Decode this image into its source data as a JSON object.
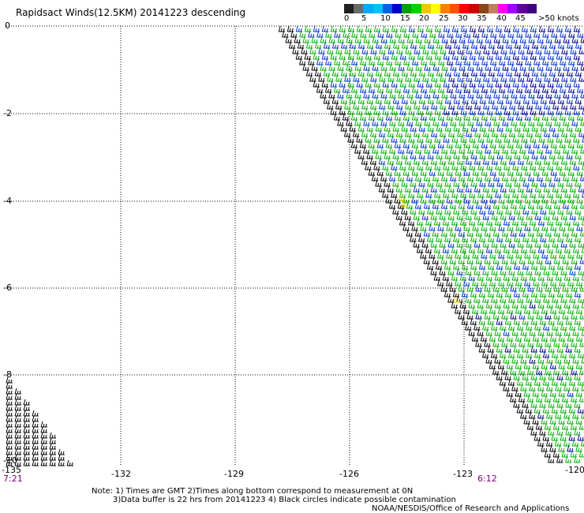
{
  "title": "Rapidsact Winds(12.5KM) 20141223 descending",
  "legend": {
    "colors": [
      "#202020",
      "#6a6a6a",
      "#00a8ff",
      "#00c0ff",
      "#0064e0",
      "#0000c8",
      "#00a000",
      "#00d000",
      "#f0c800",
      "#ffff00",
      "#ff8000",
      "#ff5000",
      "#ff0000",
      "#c80000",
      "#8b4513",
      "#c08060",
      "#ff00ff",
      "#a000ff",
      "#6000a0",
      "#400080"
    ],
    "labels": [
      "0",
      "5",
      "10",
      "15",
      "20",
      "25",
      "30",
      "35",
      "40",
      "45",
      ">50 knots"
    ]
  },
  "axes": {
    "lon_ticks": [
      "-135",
      "-132",
      "-129",
      "-126",
      "-123",
      "-120"
    ],
    "lat_ticks": [
      "0",
      "-2",
      "-4",
      "-6",
      "-8",
      "-10"
    ]
  },
  "times": {
    "left": "7:21",
    "right": "6:12"
  },
  "notes": [
    "Note: 1) Times are GMT 2)Times along bottom correspond to measurement at 0N",
    "3)Data buffer is 22 hrs from 20141223 4) Black circles indicate possible contamination",
    "NOAA/NESDIS/Office of Research and Applications"
  ]
}
